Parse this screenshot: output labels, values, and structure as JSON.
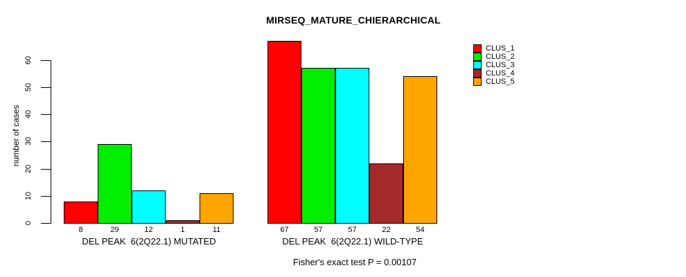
{
  "chart_data": {
    "type": "bar",
    "title": "MIRSEQ_MATURE_CHIERARCHICAL",
    "ylabel": "number of cases",
    "ylim": [
      0,
      60
    ],
    "yticks": [
      0,
      10,
      20,
      30,
      40,
      50,
      60
    ],
    "grid": false,
    "legend_position": "top-right",
    "clusters": [
      {
        "name": "CLUS_1",
        "color": "#FF0000"
      },
      {
        "name": "CLUS_2",
        "color": "#00EE00"
      },
      {
        "name": "CLUS_3",
        "color": "#00FFFF"
      },
      {
        "name": "CLUS_4",
        "color": "#A52A2A"
      },
      {
        "name": "CLUS_5",
        "color": "#FFA500"
      }
    ],
    "groups": [
      {
        "label": "DEL PEAK  6(2Q22.1) MUTATED",
        "values": [
          8,
          29,
          12,
          1,
          11
        ]
      },
      {
        "label": "DEL PEAK  6(2Q22.1) WILD-TYPE",
        "values": [
          67,
          57,
          57,
          22,
          54
        ]
      }
    ],
    "bar_value_labels_shown": true,
    "caption": "Fisher's exact test P = 0.00107"
  }
}
